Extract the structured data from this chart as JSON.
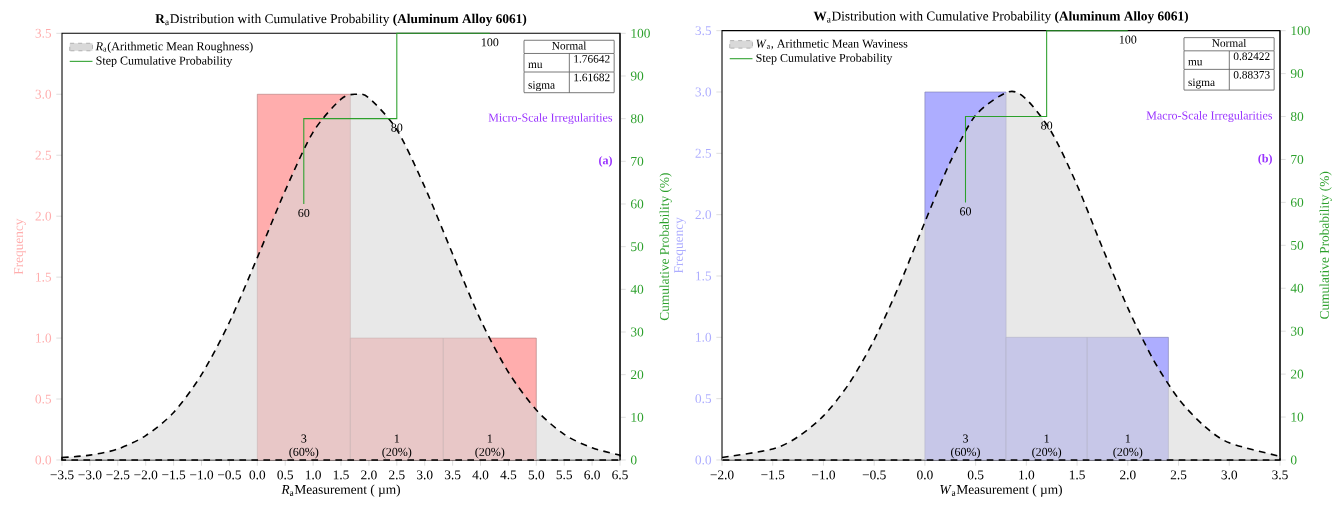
{
  "chart_data": [
    {
      "type": "histogram",
      "title": "**R**$_{a}$Distribution with Cumulative Probability  **(Aluminum Alloy 6061)**",
      "xlabel": "*R*$_{a}$Measurement ( µm)",
      "ylabel": "Frequency",
      "y2label": "Cumulative Probability (%)",
      "bins": [
        0,
        1.667,
        3.333,
        5
      ],
      "values": [
        3,
        1,
        1
      ],
      "value_labels": [
        "3 (60%)",
        "1 (20%)",
        "1 (20%)"
      ],
      "color": "#ffadad",
      "series": [
        {
          "type": "area",
          "name": "*R*$_{a}$(Arithmetic Mean Roughness)",
          "color": "#d9d9d9",
          "line_style": "dashed",
          "x": [
            -3.5,
            -3,
            -2.5,
            -2,
            -1.5,
            -1,
            -0.5,
            0,
            0.5,
            1,
            1.5,
            1.77,
            2,
            2.5,
            3,
            3.5,
            4,
            4.5,
            5,
            5.5,
            6,
            6.5
          ],
          "values": [
            0.02,
            0.04,
            0.09,
            0.2,
            0.39,
            0.7,
            1.13,
            1.66,
            2.21,
            2.69,
            2.96,
            3.0,
            2.97,
            2.71,
            2.24,
            1.69,
            1.15,
            0.72,
            0.41,
            0.21,
            0.1,
            0.04
          ]
        },
        {
          "type": "step",
          "name": "Step Cumulative Probability",
          "color": "#2ca02c",
          "axis": "y2",
          "x": [
            0.833,
            2.5,
            4.167
          ],
          "values": [
            60,
            80,
            100
          ],
          "value_labels": [
            "60",
            "80",
            "100"
          ]
        }
      ],
      "xlim": [
        -3.5,
        6.5
      ],
      "xticks": [
        {
          "value": -3.5,
          "label": "−3.5"
        },
        {
          "value": -3,
          "label": "−3.0"
        },
        {
          "value": -2.5,
          "label": "−2.5"
        },
        {
          "value": -2,
          "label": "−2.0"
        },
        {
          "value": -1.5,
          "label": "−1.5"
        },
        {
          "value": -1,
          "label": "−1.0"
        },
        {
          "value": -0.5,
          "label": "−0.5"
        },
        {
          "value": 0,
          "label": "0.0"
        },
        {
          "value": 0.5,
          "label": "0.5"
        },
        {
          "value": 1,
          "label": "1.0"
        },
        {
          "value": 1.5,
          "label": "1.5"
        },
        {
          "value": 2,
          "label": "2.0"
        },
        {
          "value": 2.5,
          "label": "2.5"
        },
        {
          "value": 3,
          "label": "3.0"
        },
        {
          "value": 3.5,
          "label": "3.5"
        },
        {
          "value": 4,
          "label": "4.0"
        },
        {
          "value": 4.5,
          "label": "4.5"
        },
        {
          "value": 5,
          "label": "5.0"
        },
        {
          "value": 5.5,
          "label": "5.5"
        },
        {
          "value": 6,
          "label": "6.0"
        },
        {
          "value": 6.5,
          "label": "6.5"
        }
      ],
      "ylim": [
        0,
        3.5
      ],
      "yticks": [
        {
          "value": 0,
          "label": "0.0"
        },
        {
          "value": 0.5,
          "label": "0.5"
        },
        {
          "value": 1,
          "label": "1.0"
        },
        {
          "value": 1.5,
          "label": "1.5"
        },
        {
          "value": 2,
          "label": "2.0"
        },
        {
          "value": 2.5,
          "label": "2.5"
        },
        {
          "value": 3,
          "label": "3.0"
        },
        {
          "value": 3.5,
          "label": "3.5"
        }
      ],
      "y2lim": [
        0,
        100
      ],
      "y2ticks": [
        0,
        10,
        20,
        30,
        40,
        50,
        60,
        70,
        80,
        90,
        100
      ],
      "legend": "top left",
      "annotations": [
        "Micro-Scale Irregularities",
        "(a)",
        "Normal",
        "mu",
        "1.76642",
        "sigma",
        "1.61682"
      ]
    },
    {
      "type": "histogram",
      "title": "**W**$_{a}$Distribution with Cumulative Probability  **(Aluminum Alloy 6061)**",
      "xlabel": "*W*$_{a}$Measurement ( µm)",
      "ylabel": "Frequency",
      "y2label": "Cumulative Probability (%)",
      "bins": [
        0,
        0.8,
        1.6,
        2.4
      ],
      "values": [
        3,
        1,
        1
      ],
      "value_labels": [
        "3 (60%)",
        "1 (20%)",
        "1 (20%)"
      ],
      "color": "#adadff",
      "series": [
        {
          "type": "area",
          "name": "*W*$_{a}$, Arithmetic Mean Waviness",
          "color": "#d9d9d9",
          "line_style": "dashed",
          "x": [
            -2,
            -1.5,
            -1.25,
            -1,
            -0.75,
            -0.5,
            -0.25,
            0,
            0.25,
            0.5,
            0.82,
            1,
            1.25,
            1.5,
            1.75,
            2,
            2.25,
            2.5,
            2.75,
            3,
            3.5
          ],
          "values": [
            0.02,
            0.09,
            0.19,
            0.36,
            0.62,
            0.98,
            1.43,
            1.94,
            2.43,
            2.81,
            3.0,
            2.94,
            2.67,
            2.24,
            1.73,
            1.24,
            0.82,
            0.5,
            0.28,
            0.14,
            0.03
          ]
        },
        {
          "type": "step",
          "name": "Step Cumulative Probability",
          "color": "#2ca02c",
          "axis": "y2",
          "x": [
            0.4,
            1.2,
            2.0
          ],
          "values": [
            60,
            80,
            100
          ],
          "value_labels": [
            "60",
            "80",
            "100"
          ]
        }
      ],
      "xlim": [
        -2,
        3.5
      ],
      "xticks": [
        {
          "value": -2,
          "label": "−2.0"
        },
        {
          "value": -1.5,
          "label": "−1.5"
        },
        {
          "value": -1,
          "label": "−1.0"
        },
        {
          "value": -0.5,
          "label": "−0.5"
        },
        {
          "value": 0,
          "label": "0.0"
        },
        {
          "value": 0.5,
          "label": "0.5"
        },
        {
          "value": 1,
          "label": "1.0"
        },
        {
          "value": 1.5,
          "label": "1.5"
        },
        {
          "value": 2,
          "label": "2.0"
        },
        {
          "value": 2.5,
          "label": "2.5"
        },
        {
          "value": 3,
          "label": "3.0"
        },
        {
          "value": 3.5,
          "label": "3.5"
        }
      ],
      "ylim": [
        0,
        3.5
      ],
      "yticks": [
        {
          "value": 0,
          "label": "0.0"
        },
        {
          "value": 0.5,
          "label": "0.5"
        },
        {
          "value": 1,
          "label": "1.0"
        },
        {
          "value": 1.5,
          "label": "1.5"
        },
        {
          "value": 2,
          "label": "2.0"
        },
        {
          "value": 2.5,
          "label": "2.5"
        },
        {
          "value": 3,
          "label": "3.0"
        },
        {
          "value": 3.5,
          "label": "3.5"
        }
      ],
      "y2lim": [
        0,
        100
      ],
      "y2ticks": [
        0,
        10,
        20,
        30,
        40,
        50,
        60,
        70,
        80,
        90,
        100
      ],
      "legend": "top left",
      "annotations": [
        "Macro-Scale Irregularities",
        "(b)",
        "Normal",
        "mu",
        "0.82422",
        "sigma",
        "0.88373"
      ]
    }
  ]
}
